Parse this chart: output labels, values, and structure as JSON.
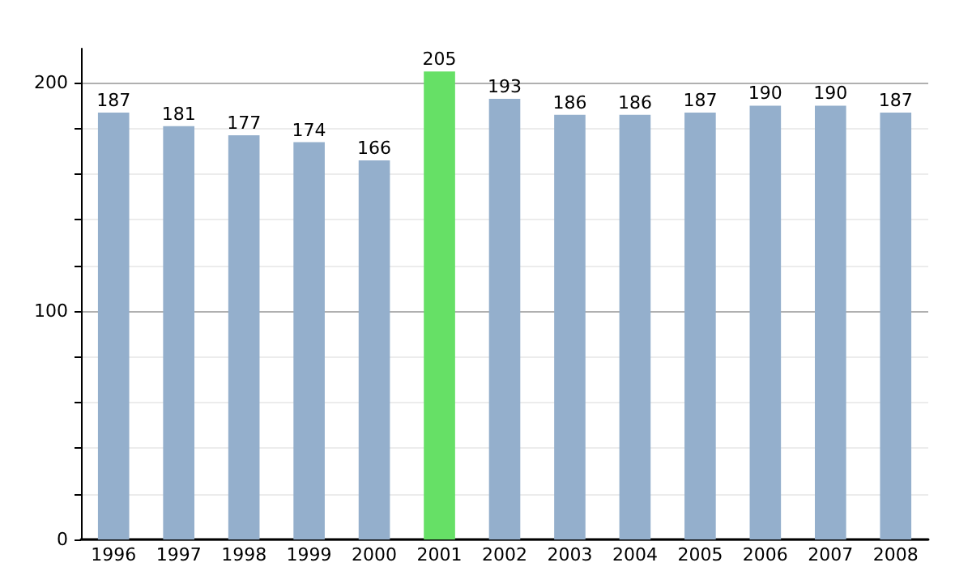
{
  "chart_data": {
    "type": "bar",
    "categories": [
      "1996",
      "1997",
      "1998",
      "1999",
      "2000",
      "2001",
      "2002",
      "2003",
      "2004",
      "2005",
      "2006",
      "2007",
      "2008"
    ],
    "values": [
      187,
      181,
      177,
      174,
      166,
      205,
      193,
      186,
      186,
      187,
      190,
      190,
      187
    ],
    "colors": [
      "#94afcc",
      "#94afcc",
      "#94afcc",
      "#94afcc",
      "#94afcc",
      "#66e066",
      "#94afcc",
      "#94afcc",
      "#94afcc",
      "#94afcc",
      "#94afcc",
      "#94afcc",
      "#94afcc"
    ],
    "ylim": [
      0,
      215
    ],
    "yticks": [
      0,
      {
        "value": 20,
        "label": null
      },
      {
        "value": 40,
        "label": null
      },
      {
        "value": 60,
        "label": null
      },
      {
        "value": 80,
        "label": null
      },
      100,
      {
        "value": 120,
        "label": null
      },
      {
        "value": 140,
        "label": null
      },
      {
        "value": 160,
        "label": null
      },
      {
        "value": 180,
        "label": null
      },
      200
    ],
    "grid": "y",
    "data_labels": true
  }
}
